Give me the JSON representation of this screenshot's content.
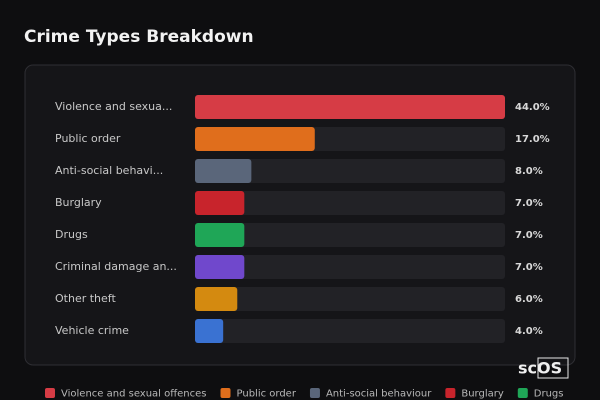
{
  "chart_data": {
    "type": "bar",
    "orientation": "horizontal",
    "title": "Crime Types Breakdown",
    "categories": [
      "Violence and sexua...",
      "Public order",
      "Anti-social behavi...",
      "Burglary",
      "Drugs",
      "Criminal damage an...",
      "Other theft",
      "Vehicle crime"
    ],
    "values": [
      44.0,
      17.0,
      8.0,
      7.0,
      7.0,
      7.0,
      6.0,
      4.0
    ],
    "value_labels": [
      "44.0%",
      "17.0%",
      "8.0%",
      "7.0%",
      "7.0%",
      "7.0%",
      "6.0%",
      "4.0%"
    ],
    "colors": [
      "#d63c45",
      "#e06e1c",
      "#5a667a",
      "#c8242c",
      "#1fa657",
      "#7048cc",
      "#d48a10",
      "#3a72d2"
    ],
    "xlim": [
      0,
      44
    ],
    "legend": [
      {
        "name": "Violence and sexual offences",
        "color": "#d63c45"
      },
      {
        "name": "Public order",
        "color": "#e06e1c"
      },
      {
        "name": "Anti-social behaviour",
        "color": "#5a667a"
      },
      {
        "name": "Burglary",
        "color": "#c8242c"
      },
      {
        "name": "Drugs",
        "color": "#1fa657"
      }
    ],
    "watermark": "scOS"
  }
}
